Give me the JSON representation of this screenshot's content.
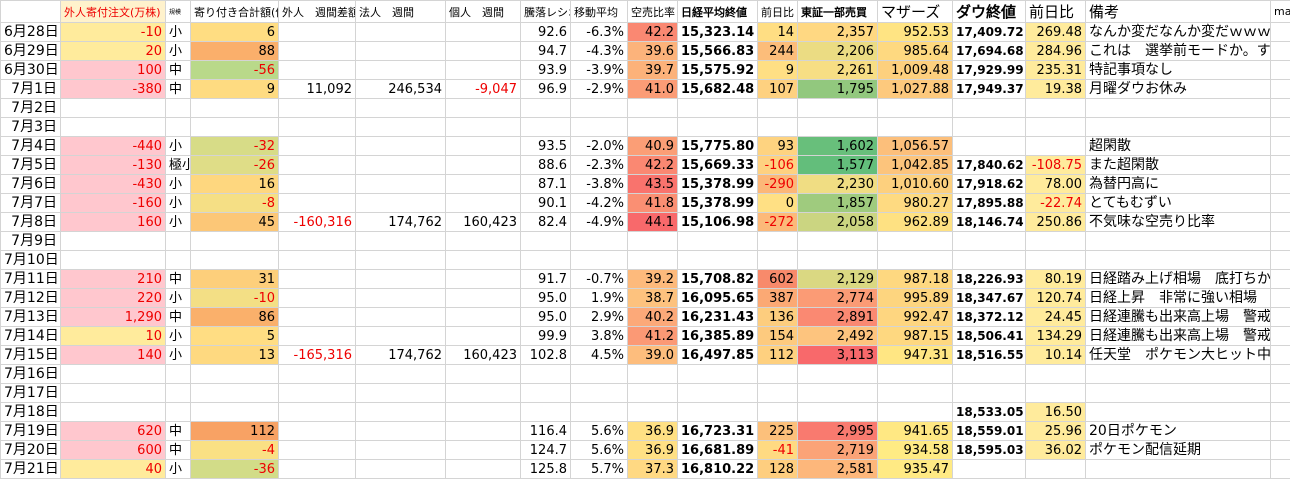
{
  "header": [
    "",
    "外人寄付注文(万株)",
    "規模",
    "寄り付き合計額(億)",
    "外人　週間差額",
    "法人　週間",
    "個人　週間",
    "騰落レシオ",
    "移動平均",
    "空売比率",
    "日経平均終値",
    "前日比",
    "東証一部売買",
    "マザーズ",
    "ダウ終値",
    "前日比",
    "備考",
    "ma"
  ],
  "rows": [
    [
      "6月28日",
      "-10",
      "小",
      "6",
      null,
      null,
      null,
      "92.6",
      "-6.3%",
      "42.2",
      "15,323.14",
      "14",
      "2,357",
      "952.53",
      "17,409.72",
      "269.48",
      "なんか変だなんか変だｗｗｗｗ",
      null
    ],
    [
      "6月29日",
      "20",
      "小",
      "88",
      null,
      null,
      null,
      "94.7",
      "-4.3%",
      "39.6",
      "15,566.83",
      "244",
      "2,206",
      "985.64",
      "17,694.68",
      "284.96",
      "これは　選挙前モードか。すっきり。",
      null
    ],
    [
      "6月30日",
      "100",
      "中",
      "-56",
      null,
      null,
      null,
      "93.9",
      "-3.9%",
      "39.7",
      "15,575.92",
      "9",
      "2,261",
      "1,009.48",
      "17,929.99",
      "235.31",
      "特記事項なし",
      null
    ],
    [
      "7月1日",
      "-380",
      "中",
      "9",
      "11,092",
      "246,534",
      "-9,047",
      "96.9",
      "-2.9%",
      "41.0",
      "15,682.48",
      "107",
      "1,795",
      "1,027.88",
      "17,949.37",
      "19.38",
      "月曜ダウお休み",
      null
    ],
    [
      "7月2日",
      null,
      null,
      null,
      null,
      null,
      null,
      null,
      null,
      null,
      null,
      null,
      null,
      null,
      null,
      null,
      null,
      null
    ],
    [
      "7月3日",
      null,
      null,
      null,
      null,
      null,
      null,
      null,
      null,
      null,
      null,
      null,
      null,
      null,
      null,
      null,
      null,
      null
    ],
    [
      "7月4日",
      "-440",
      "小",
      "-32",
      null,
      null,
      null,
      "93.5",
      "-2.0%",
      "40.9",
      "15,775.80",
      "93",
      "1,602",
      "1,056.57",
      null,
      null,
      "超閑散",
      null
    ],
    [
      "7月5日",
      "-130",
      "極小",
      "-26",
      null,
      null,
      null,
      "88.6",
      "-2.3%",
      "42.2",
      "15,669.33",
      "-106",
      "1,577",
      "1,042.85",
      "17,840.62",
      "-108.75",
      "また超閑散",
      null
    ],
    [
      "7月6日",
      "-430",
      "小",
      "16",
      null,
      null,
      null,
      "87.1",
      "-3.8%",
      "43.5",
      "15,378.99",
      "-290",
      "2,230",
      "1,010.60",
      "17,918.62",
      "78.00",
      "為替円高に",
      null
    ],
    [
      "7月7日",
      "-160",
      "小",
      "-8",
      null,
      null,
      null,
      "90.1",
      "-4.2%",
      "41.8",
      "15,378.99",
      "0",
      "1,857",
      "980.27",
      "17,895.88",
      "-22.74",
      "とてもむずい",
      null
    ],
    [
      "7月8日",
      "160",
      "小",
      "45",
      "-160,316",
      "174,762",
      "160,423",
      "82.4",
      "-4.9%",
      "44.1",
      "15,106.98",
      "-272",
      "2,058",
      "962.89",
      "18,146.74",
      "250.86",
      "不気味な空売り比率",
      null
    ],
    [
      "7月9日",
      null,
      null,
      null,
      null,
      null,
      null,
      null,
      null,
      null,
      null,
      null,
      null,
      null,
      null,
      null,
      null,
      null
    ],
    [
      "7月10日",
      null,
      null,
      null,
      null,
      null,
      null,
      null,
      null,
      null,
      null,
      null,
      null,
      null,
      null,
      null,
      null,
      null
    ],
    [
      "7月11日",
      "210",
      "中",
      "31",
      null,
      null,
      null,
      "91.7",
      "-0.7%",
      "39.2",
      "15,708.82",
      "602",
      "2,129",
      "987.18",
      "18,226.93",
      "80.19",
      "日経踏み上げ相場　底打ちか",
      null
    ],
    [
      "7月12日",
      "220",
      "小",
      "-10",
      null,
      null,
      null,
      "95.0",
      "1.9%",
      "38.7",
      "16,095.65",
      "387",
      "2,774",
      "995.89",
      "18,347.67",
      "120.74",
      "日経上昇　非常に強い相場",
      null
    ],
    [
      "7月13日",
      "1,290",
      "中",
      "86",
      null,
      null,
      null,
      "95.0",
      "2.9%",
      "40.2",
      "16,231.43",
      "136",
      "2,891",
      "992.47",
      "18,372.12",
      "24.45",
      "日経連騰も出来高上場　警戒気味いいね",
      null
    ],
    [
      "7月14日",
      "10",
      "小",
      "5",
      null,
      null,
      null,
      "99.9",
      "3.8%",
      "41.2",
      "16,385.89",
      "154",
      "2,492",
      "987.15",
      "18,506.41",
      "134.29",
      "日経連騰も出来高上場　警戒気味いいね",
      null
    ],
    [
      "7月15日",
      "140",
      "小",
      "13",
      "-165,316",
      "174,762",
      "160,423",
      "102.8",
      "4.5%",
      "39.0",
      "16,497.85",
      "112",
      "3,113",
      "947.31",
      "18,516.55",
      "10.14",
      "任天堂　ポケモン大ヒット中",
      null
    ],
    [
      "7月16日",
      null,
      null,
      null,
      null,
      null,
      null,
      null,
      null,
      null,
      null,
      null,
      null,
      null,
      null,
      null,
      null,
      null
    ],
    [
      "7月17日",
      null,
      null,
      null,
      null,
      null,
      null,
      null,
      null,
      null,
      null,
      null,
      null,
      null,
      null,
      null,
      null,
      null
    ],
    [
      "7月18日",
      null,
      null,
      null,
      null,
      null,
      null,
      null,
      null,
      null,
      null,
      null,
      null,
      null,
      "18,533.05",
      "16.50",
      null,
      null
    ],
    [
      "7月19日",
      "620",
      "中",
      "112",
      null,
      null,
      null,
      "116.4",
      "5.6%",
      "36.9",
      "16,723.31",
      "225",
      "2,995",
      "941.65",
      "18,559.01",
      "25.96",
      "20日ポケモン",
      null
    ],
    [
      "7月20日",
      "600",
      "中",
      "-4",
      null,
      null,
      null,
      "124.7",
      "5.6%",
      "36.9",
      "16,681.89",
      "-41",
      "2,719",
      "934.58",
      "18,595.03",
      "36.02",
      "ポケモン配信延期",
      null
    ],
    [
      "7月21日",
      "40",
      "小",
      "-36",
      null,
      null,
      null,
      "125.8",
      "5.7%",
      "37.3",
      "16,810.22",
      "128",
      "2,581",
      "935.47",
      null,
      null,
      null,
      null
    ]
  ]
}
